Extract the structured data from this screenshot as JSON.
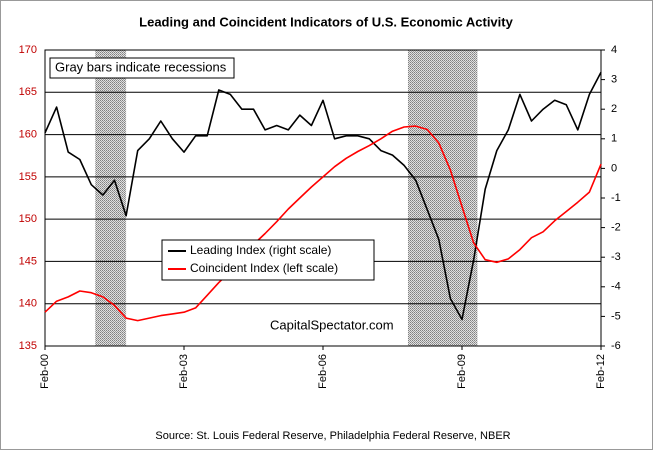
{
  "chart_data": {
    "type": "line",
    "title": "Leading and Coincident Indicators of U.S. Economic Activity",
    "annotation": "Gray bars indicate recessions",
    "watermark": "CapitalSpectator.com",
    "source": "Source: St. Louis Federal Reserve, Philadelphia Federal Reserve, NBER",
    "x": [
      "2000-02",
      "2000-05",
      "2000-08",
      "2000-11",
      "2001-02",
      "2001-05",
      "2001-08",
      "2001-11",
      "2002-02",
      "2002-05",
      "2002-08",
      "2002-11",
      "2003-02",
      "2003-05",
      "2003-08",
      "2003-11",
      "2004-02",
      "2004-05",
      "2004-08",
      "2004-11",
      "2005-02",
      "2005-05",
      "2005-08",
      "2005-11",
      "2006-02",
      "2006-05",
      "2006-08",
      "2006-11",
      "2007-02",
      "2007-05",
      "2007-08",
      "2007-11",
      "2008-02",
      "2008-05",
      "2008-08",
      "2008-11",
      "2009-02",
      "2009-05",
      "2009-08",
      "2009-11",
      "2010-02",
      "2010-05",
      "2010-08",
      "2010-11",
      "2011-02",
      "2011-05",
      "2011-08",
      "2011-11",
      "2012-02"
    ],
    "xlim": [
      "2000-02",
      "2012-02"
    ],
    "xticks": [
      {
        "value": "2000-02",
        "label": "Feb-00"
      },
      {
        "value": "2003-02",
        "label": "Feb-03"
      },
      {
        "value": "2006-02",
        "label": "Feb-06"
      },
      {
        "value": "2009-02",
        "label": "Feb-09"
      },
      {
        "value": "2012-02",
        "label": "Feb-12"
      }
    ],
    "ylim": [
      135,
      170
    ],
    "yticks": [
      135,
      140,
      145,
      150,
      155,
      160,
      165,
      170
    ],
    "y2lim": [
      -6,
      4
    ],
    "y2ticks": [
      -6,
      -5,
      -4,
      -3,
      -2,
      -1,
      0,
      1,
      2,
      3,
      4
    ],
    "grid": true,
    "legend_position": "center",
    "recessions": [
      {
        "start": "2001-03",
        "end": "2001-11"
      },
      {
        "start": "2007-12",
        "end": "2009-06"
      }
    ],
    "series": [
      {
        "name": "Leading Index (right scale)",
        "color": "#000000",
        "axis": "y2",
        "values": [
          1.2,
          2.07,
          0.55,
          0.3,
          -0.55,
          -0.9,
          -0.4,
          -1.6,
          0.6,
          1.0,
          1.6,
          1.0,
          0.55,
          1.1,
          1.1,
          2.65,
          2.5,
          2.0,
          2.0,
          1.3,
          1.45,
          1.3,
          1.8,
          1.45,
          2.3,
          1.0,
          1.1,
          1.1,
          1.0,
          0.6,
          0.45,
          0.1,
          -0.4,
          -1.4,
          -2.4,
          -4.4,
          -5.1,
          -3.1,
          -0.7,
          0.6,
          1.3,
          2.5,
          1.6,
          2.0,
          2.3,
          2.15,
          1.3,
          2.5,
          3.25
        ]
      },
      {
        "name": "Coincident Index (left scale)",
        "color": "#ff0000",
        "values": [
          139,
          140.3,
          140.8,
          141.5,
          141.3,
          140.8,
          139.8,
          138.3,
          138,
          138.3,
          138.6,
          138.8,
          139,
          139.5,
          141,
          142.5,
          143.8,
          145.5,
          147,
          148.3,
          149.7,
          151.2,
          152.5,
          153.8,
          155,
          156.2,
          157.2,
          158,
          158.7,
          159.5,
          160.4,
          160.9,
          161,
          160.6,
          159,
          155.8,
          151.5,
          147.2,
          145.2,
          144.9,
          145.3,
          146.4,
          147.8,
          148.5,
          149.8,
          150.9,
          152,
          153.2,
          156.5
        ]
      }
    ]
  }
}
